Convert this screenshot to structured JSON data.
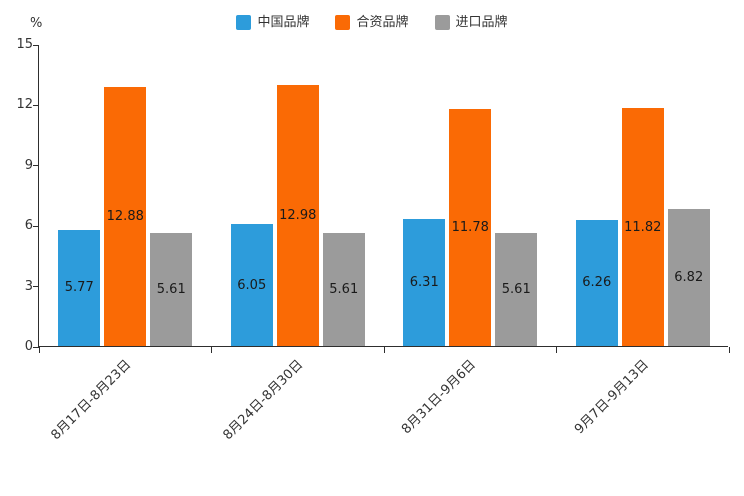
{
  "chart_data": {
    "type": "bar",
    "title": "",
    "unit_label": "%",
    "categories": [
      "8月17日-8月23日",
      "8月24日-8月30日",
      "8月31日-9月6日",
      "9月7日-9月13日"
    ],
    "series": [
      {
        "name": "中国品牌",
        "color": "#2D9CDB",
        "values": [
          5.77,
          6.05,
          6.31,
          6.26
        ]
      },
      {
        "name": "合资品牌",
        "color": "#FA6A05",
        "values": [
          12.88,
          12.98,
          11.78,
          11.82
        ]
      },
      {
        "name": "进口品牌",
        "color": "#9B9B9B",
        "values": [
          5.61,
          5.61,
          5.61,
          6.82
        ]
      }
    ],
    "ylim": [
      0,
      15
    ],
    "yticks": [
      0,
      3,
      6,
      9,
      12,
      15
    ],
    "legend_position": "top",
    "grid": false,
    "value_labels": "inside-center",
    "x_label_rotation": 45
  }
}
